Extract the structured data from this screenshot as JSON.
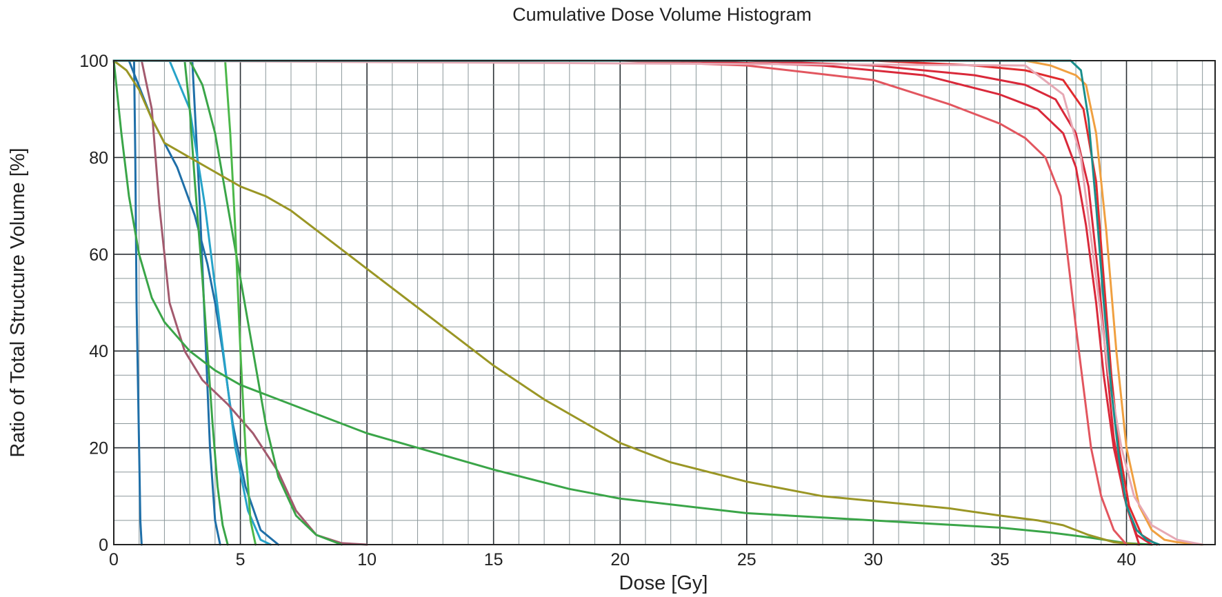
{
  "chart_data": {
    "type": "line",
    "title": "Cumulative Dose Volume Histogram",
    "xlabel": "Dose [Gy]",
    "ylabel": "Ratio of Total Structure Volume [%]",
    "xlim": [
      0,
      43.5
    ],
    "ylim": [
      0,
      100
    ],
    "xticks": [
      "0",
      "5",
      "10",
      "15",
      "20",
      "25",
      "30",
      "35",
      "40"
    ],
    "yticks": [
      "0",
      "20",
      "40",
      "60",
      "80",
      "100"
    ],
    "grid": true,
    "legend": "none",
    "series": [
      {
        "color": "#1f6fa8",
        "x": [
          0,
          0.8,
          0.85,
          0.9,
          1.0,
          1.05,
          1.1
        ],
        "y": [
          100,
          100,
          80,
          50,
          20,
          5,
          0
        ]
      },
      {
        "color": "#1f6fa8",
        "x": [
          0,
          0.6,
          1.5,
          2.5,
          3.2,
          3.7,
          4.0,
          4.3,
          4.7,
          5.2,
          5.8,
          6.5
        ],
        "y": [
          100,
          100,
          88,
          78,
          68,
          58,
          50,
          40,
          25,
          12,
          3,
          0
        ]
      },
      {
        "color": "#1f6fa8",
        "x": [
          0,
          3.1,
          3.2,
          3.4,
          3.6,
          3.8,
          4.0,
          4.2
        ],
        "y": [
          100,
          100,
          90,
          70,
          45,
          20,
          5,
          0
        ]
      },
      {
        "color": "#27a3c9",
        "x": [
          0,
          2.2,
          3.0,
          3.6,
          4.2,
          4.8,
          5.3,
          5.8,
          6.2
        ],
        "y": [
          100,
          100,
          90,
          70,
          45,
          20,
          7,
          1,
          0
        ]
      },
      {
        "color": "#a35a6e",
        "x": [
          0,
          1.1,
          1.5,
          1.8,
          2.2,
          2.8,
          3.5,
          4.5,
          5.5,
          6.5,
          7.2,
          8.0,
          9.0,
          10.0
        ],
        "y": [
          100,
          100,
          90,
          70,
          50,
          40,
          34,
          29,
          23,
          15,
          7,
          2,
          0.3,
          0
        ]
      },
      {
        "color": "#3aa548",
        "x": [
          0,
          2.8,
          3.0,
          3.2,
          3.5,
          3.7,
          3.9,
          4.1,
          4.3,
          4.5
        ],
        "y": [
          100,
          100,
          90,
          75,
          55,
          40,
          25,
          12,
          4,
          0
        ]
      },
      {
        "color": "#3aa548",
        "x": [
          0,
          3.0,
          3.5,
          4.0,
          4.5,
          5.0,
          5.5,
          6.0,
          6.5,
          7.2,
          8.0,
          9.0
        ],
        "y": [
          100,
          100,
          95,
          85,
          70,
          55,
          40,
          25,
          14,
          6,
          2,
          0
        ]
      },
      {
        "color": "#4cb84a",
        "x": [
          0,
          4.4,
          4.6,
          4.8,
          5.0,
          5.2,
          5.4,
          5.6
        ],
        "y": [
          100,
          100,
          85,
          65,
          40,
          20,
          5,
          0
        ]
      },
      {
        "color": "#3aa548",
        "x": [
          0,
          0.3,
          0.6,
          1.0,
          1.5,
          2.0,
          3.0,
          4.0,
          5.0,
          6.0,
          8.0,
          10.0,
          12.0,
          15.0,
          18.0,
          20.0,
          25.0,
          30.0,
          35.0,
          37.0,
          38.5,
          40.0,
          41.0
        ],
        "y": [
          100,
          85,
          72,
          60,
          51,
          46,
          40,
          36,
          33,
          31,
          27,
          23,
          20,
          15.5,
          11.5,
          9.5,
          6.5,
          5,
          3.5,
          2.5,
          1.5,
          0.3,
          0
        ]
      },
      {
        "color": "#9a9625",
        "x": [
          0,
          0.5,
          1.0,
          1.5,
          2.0,
          3.0,
          4.0,
          5.0,
          6.0,
          7.0,
          8.0,
          10.0,
          12.0,
          14.0,
          15.0,
          17.0,
          19.0,
          20.0,
          22.0,
          25.0,
          28.0,
          30.0,
          33.0,
          35.0,
          36.5,
          37.5,
          38.5,
          39.5,
          40.5
        ],
        "y": [
          100,
          98,
          94,
          88,
          83,
          80,
          77,
          74,
          72,
          69,
          65,
          57,
          49,
          41,
          37,
          30,
          24,
          21,
          17,
          13,
          10,
          9,
          7.5,
          6,
          5,
          4,
          2,
          0.5,
          0
        ]
      },
      {
        "color": "#e2565f",
        "x": [
          0,
          20.0,
          25.0,
          30.0,
          33.0,
          35.0,
          36.0,
          36.8,
          37.4,
          38.0,
          38.6,
          39.0,
          39.5,
          40.0
        ],
        "y": [
          100,
          100,
          99,
          96,
          91,
          87,
          84,
          80,
          72,
          45,
          20,
          10,
          3,
          0
        ]
      },
      {
        "color": "#d9293a",
        "x": [
          0,
          22.0,
          28.0,
          32.0,
          35.0,
          36.5,
          37.5,
          38.0,
          38.4,
          38.8,
          39.1,
          39.5,
          40.0,
          40.5
        ],
        "y": [
          100,
          100,
          99,
          97,
          93,
          90,
          85,
          78,
          66,
          50,
          35,
          20,
          8,
          0
        ]
      },
      {
        "color": "#d9293a",
        "x": [
          0,
          25.0,
          30.0,
          34.0,
          36.0,
          37.2,
          38.0,
          38.5,
          38.9,
          39.2,
          39.5,
          39.9,
          40.4,
          41.0
        ],
        "y": [
          100,
          100,
          99,
          97,
          95,
          92,
          85,
          74,
          55,
          38,
          22,
          10,
          2,
          0
        ]
      },
      {
        "color": "#e02b2e",
        "x": [
          0,
          30.0,
          34.0,
          36.0,
          37.5,
          38.3,
          38.8,
          39.1,
          39.4,
          39.7,
          40.1,
          40.6,
          41.2
        ],
        "y": [
          100,
          100,
          99,
          98,
          96,
          90,
          75,
          55,
          35,
          20,
          8,
          2,
          0
        ]
      },
      {
        "color": "#f0a040",
        "x": [
          0,
          36.0,
          37.0,
          38.0,
          38.4,
          38.8,
          39.2,
          39.6,
          40.0,
          40.5,
          41.0,
          41.5,
          42.0,
          43.0
        ],
        "y": [
          100,
          100,
          99,
          97,
          95,
          85,
          65,
          40,
          20,
          8,
          3,
          1,
          0.5,
          0
        ]
      },
      {
        "color": "#e6a8b4",
        "x": [
          0,
          36.0,
          37.5,
          38.2,
          38.8,
          39.3,
          39.8,
          40.3,
          41.0,
          42.0,
          43.0
        ],
        "y": [
          100,
          99,
          93,
          80,
          55,
          35,
          20,
          10,
          4,
          1,
          0
        ]
      },
      {
        "color": "#1a8f8c",
        "x": [
          0,
          37.0,
          37.8,
          38.2,
          38.5,
          38.8,
          39.1,
          39.4,
          39.7,
          40.0,
          40.4,
          40.8,
          41.3
        ],
        "y": [
          100,
          100,
          100,
          98,
          88,
          70,
          50,
          32,
          18,
          8,
          3,
          1,
          0
        ]
      }
    ]
  }
}
